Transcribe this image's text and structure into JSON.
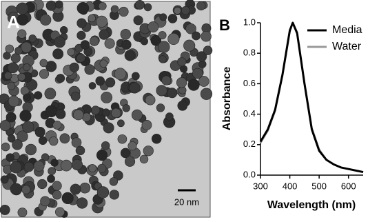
{
  "image_panel": {
    "label": "A",
    "scale_bar": "20 nm"
  },
  "chart_data": {
    "type": "line",
    "panel_label": "B",
    "x_label": "Wavelength (nm)",
    "y_label": "Absorbance",
    "x": [
      300,
      325,
      350,
      375,
      400,
      410,
      425,
      450,
      475,
      500,
      525,
      550,
      575,
      600,
      625,
      650
    ],
    "series": [
      {
        "name": "Media",
        "color": "#000000",
        "values": [
          0.22,
          0.3,
          0.43,
          0.66,
          0.95,
          1.0,
          0.93,
          0.6,
          0.3,
          0.16,
          0.1,
          0.07,
          0.05,
          0.04,
          0.03,
          0.02
        ]
      },
      {
        "name": "Water",
        "color": "#999999",
        "values": [
          0.21,
          0.29,
          0.42,
          0.65,
          0.94,
          1.0,
          0.94,
          0.61,
          0.31,
          0.17,
          0.1,
          0.07,
          0.05,
          0.04,
          0.03,
          0.02
        ]
      }
    ],
    "xlim": [
      300,
      650
    ],
    "ylim": [
      0,
      1
    ],
    "xticks": [
      300,
      400,
      500,
      600
    ],
    "yticks": [
      {
        "value": 0,
        "label": "0.0"
      },
      0.2,
      0.4,
      0.6,
      0.8,
      {
        "value": 1,
        "label": "1.0"
      }
    ],
    "legend": "top-right"
  }
}
